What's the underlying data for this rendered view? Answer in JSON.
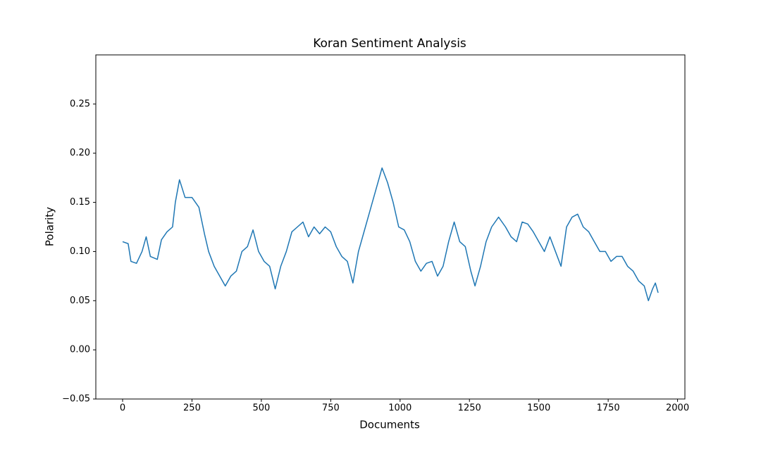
{
  "chart_data": {
    "type": "line",
    "title": "Koran Sentiment Analysis",
    "x_label": "Documents",
    "y_label": "Polarity",
    "x": [
      0,
      20,
      30,
      50,
      70,
      85,
      100,
      125,
      140,
      160,
      180,
      190,
      205,
      225,
      250,
      275,
      295,
      310,
      330,
      350,
      370,
      390,
      410,
      430,
      450,
      470,
      490,
      510,
      530,
      550,
      570,
      590,
      610,
      630,
      650,
      670,
      690,
      710,
      730,
      750,
      770,
      790,
      810,
      830,
      850,
      870,
      890,
      910,
      935,
      955,
      975,
      995,
      1015,
      1035,
      1055,
      1075,
      1095,
      1115,
      1135,
      1155,
      1175,
      1195,
      1215,
      1235,
      1255,
      1270,
      1290,
      1310,
      1330,
      1355,
      1380,
      1400,
      1420,
      1440,
      1460,
      1480,
      1500,
      1520,
      1540,
      1560,
      1580,
      1600,
      1620,
      1640,
      1660,
      1680,
      1700,
      1720,
      1740,
      1760,
      1780,
      1800,
      1820,
      1840,
      1860,
      1880,
      1895,
      1910,
      1920,
      1930
    ],
    "series": [
      {
        "color": "#1f77b4",
        "values": [
          0.11,
          0.108,
          0.09,
          0.088,
          0.1,
          0.115,
          0.095,
          0.092,
          0.112,
          0.12,
          0.125,
          0.15,
          0.173,
          0.155,
          0.155,
          0.145,
          0.118,
          0.1,
          0.085,
          0.075,
          0.065,
          0.075,
          0.08,
          0.1,
          0.105,
          0.122,
          0.1,
          0.09,
          0.085,
          0.062,
          0.085,
          0.1,
          0.12,
          0.125,
          0.13,
          0.115,
          0.125,
          0.118,
          0.125,
          0.12,
          0.105,
          0.095,
          0.09,
          0.068,
          0.1,
          0.12,
          0.14,
          0.16,
          0.185,
          0.17,
          0.15,
          0.125,
          0.122,
          0.11,
          0.09,
          0.08,
          0.088,
          0.09,
          0.075,
          0.085,
          0.11,
          0.13,
          0.11,
          0.105,
          0.08,
          0.065,
          0.085,
          0.11,
          0.125,
          0.135,
          0.125,
          0.115,
          0.11,
          0.13,
          0.128,
          0.12,
          0.11,
          0.1,
          0.115,
          0.1,
          0.085,
          0.125,
          0.135,
          0.138,
          0.125,
          0.12,
          0.11,
          0.1,
          0.1,
          0.09,
          0.095,
          0.095,
          0.085,
          0.08,
          0.07,
          0.065,
          0.05,
          0.062,
          0.068,
          0.058
        ]
      }
    ],
    "xlim": [
      -96.5,
      2026.5
    ],
    "ylim": [
      -0.05,
      0.3
    ],
    "xticks": [
      0,
      250,
      500,
      750,
      1000,
      1250,
      1500,
      1750,
      2000
    ],
    "yticks": [
      {
        "value": -0.05,
        "label": "−0.05"
      },
      {
        "value": 0,
        "label": "0.00"
      },
      0.05,
      {
        "value": 0.1,
        "label": "0.10"
      },
      0.15,
      {
        "value": 0.2,
        "label": "0.20"
      },
      0.25
    ]
  }
}
